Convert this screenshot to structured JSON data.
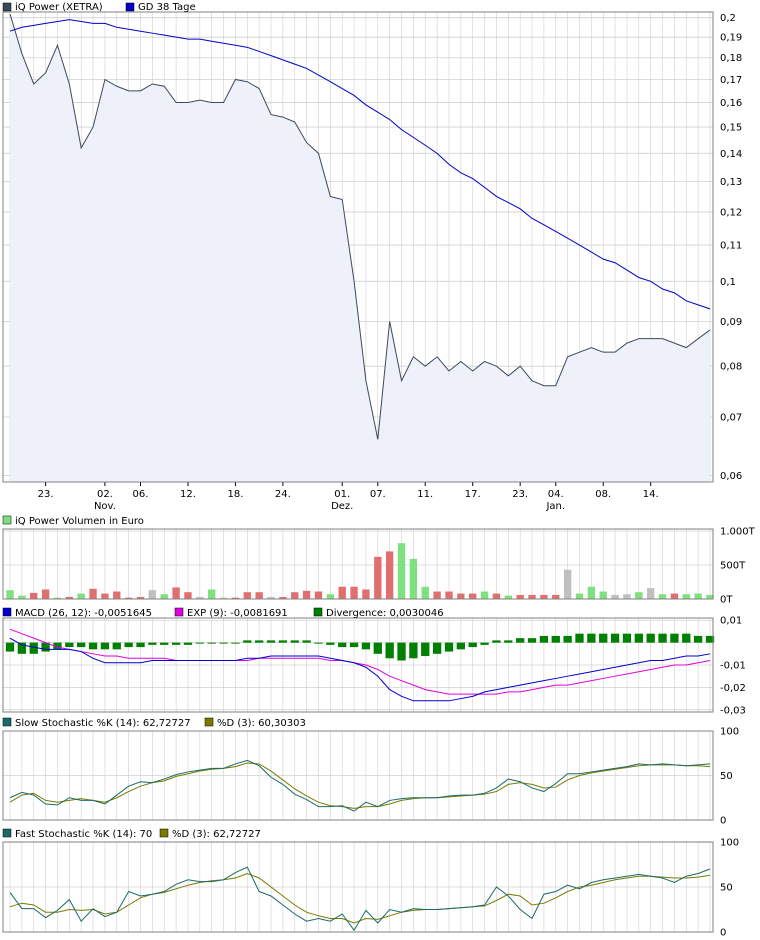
{
  "colors": {
    "price_line": "#3a4a5c",
    "price_fill": "#eef1fa",
    "gd_line": "#0000c8",
    "grid": "#d0d0d0",
    "frame": "#808080",
    "vol_up": "#7fe07f",
    "vol_down": "#e07070",
    "vol_neutral": "#bfbfbf",
    "macd_line": "#0000cc",
    "exp_line": "#e000e0",
    "divergence": "#008000",
    "stoch_k": "#1a6a6a",
    "stoch_d": "#7a7a00"
  },
  "chart_data": [
    {
      "id": "price",
      "type": "area",
      "legend": [
        "iQ Power (XETRA)",
        "GD 38 Tage"
      ],
      "x_tick_labels": [
        {
          "i": 3,
          "top": "23.",
          "bottom": ""
        },
        {
          "i": 8,
          "top": "02.",
          "bottom": "Nov."
        },
        {
          "i": 11,
          "top": "06.",
          "bottom": ""
        },
        {
          "i": 15,
          "top": "12.",
          "bottom": ""
        },
        {
          "i": 19,
          "top": "18.",
          "bottom": ""
        },
        {
          "i": 23,
          "top": "24.",
          "bottom": ""
        },
        {
          "i": 28,
          "top": "01.",
          "bottom": "Dez."
        },
        {
          "i": 31,
          "top": "07.",
          "bottom": ""
        },
        {
          "i": 35,
          "top": "11.",
          "bottom": ""
        },
        {
          "i": 39,
          "top": "17.",
          "bottom": ""
        },
        {
          "i": 43,
          "top": "23.",
          "bottom": ""
        },
        {
          "i": 46,
          "top": "04.",
          "bottom": "Jan."
        },
        {
          "i": 50,
          "top": "08.",
          "bottom": ""
        },
        {
          "i": 54,
          "top": "14.",
          "bottom": ""
        }
      ],
      "y_ticks": [
        0.06,
        0.07,
        0.08,
        0.09,
        0.1,
        0.11,
        0.12,
        0.13,
        0.14,
        0.15,
        0.16,
        0.17,
        0.18,
        0.19,
        0.2
      ],
      "y_tick_labels": [
        "0,06",
        "0,07",
        "0,08",
        "0,09",
        "0,1",
        "0,11",
        "0,12",
        "0,13",
        "0,14",
        "0,15",
        "0,16",
        "0,17",
        "0,18",
        "0,19",
        "0,2"
      ],
      "ylim": [
        0.059,
        0.203
      ],
      "log_scale": true,
      "series": [
        {
          "name": "iQ Power (XETRA)",
          "values": [
            0.202,
            0.182,
            0.168,
            0.173,
            0.186,
            0.168,
            0.142,
            0.15,
            0.17,
            0.167,
            0.165,
            0.165,
            0.168,
            0.167,
            0.16,
            0.16,
            0.161,
            0.16,
            0.16,
            0.17,
            0.169,
            0.166,
            0.155,
            0.154,
            0.152,
            0.144,
            0.14,
            0.125,
            0.124,
            0.1,
            0.077,
            0.066,
            0.09,
            0.077,
            0.082,
            0.08,
            0.082,
            0.079,
            0.081,
            0.079,
            0.081,
            0.08,
            0.078,
            0.08,
            0.077,
            0.076,
            0.076,
            0.082,
            0.083,
            0.084,
            0.083,
            0.083,
            0.085,
            0.086,
            0.086,
            0.086,
            0.085,
            0.084,
            0.086,
            0.088
          ]
        },
        {
          "name": "GD 38 Tage",
          "values": [
            0.193,
            0.195,
            0.196,
            0.197,
            0.198,
            0.199,
            0.198,
            0.197,
            0.197,
            0.195,
            0.194,
            0.193,
            0.192,
            0.191,
            0.19,
            0.189,
            0.189,
            0.188,
            0.187,
            0.186,
            0.185,
            0.183,
            0.181,
            0.179,
            0.177,
            0.175,
            0.172,
            0.169,
            0.166,
            0.163,
            0.159,
            0.156,
            0.153,
            0.149,
            0.146,
            0.143,
            0.14,
            0.136,
            0.133,
            0.131,
            0.128,
            0.125,
            0.123,
            0.121,
            0.118,
            0.116,
            0.114,
            0.112,
            0.11,
            0.108,
            0.106,
            0.105,
            0.103,
            0.101,
            0.1,
            0.098,
            0.097,
            0.095,
            0.094,
            0.093
          ]
        }
      ]
    },
    {
      "id": "volume",
      "type": "bar",
      "legend": [
        "iQ Power Volumen in Euro"
      ],
      "y_tick_labels": [
        {
          "v": 0,
          "label": "0T"
        },
        {
          "v": 500,
          "label": "500T"
        },
        {
          "v": 1000,
          "label": "1.000T"
        }
      ],
      "ylim": [
        0,
        1000
      ],
      "values": [
        130,
        50,
        90,
        140,
        20,
        30,
        80,
        150,
        80,
        110,
        20,
        30,
        130,
        70,
        170,
        100,
        30,
        140,
        20,
        20,
        100,
        100,
        30,
        30,
        100,
        120,
        110,
        70,
        180,
        180,
        140,
        620,
        700,
        820,
        590,
        180,
        110,
        110,
        80,
        80,
        110,
        80,
        50,
        60,
        60,
        60,
        60,
        430,
        80,
        180,
        110,
        60,
        70,
        100,
        160,
        70,
        80,
        70,
        80,
        60
      ],
      "kinds": [
        "up",
        "up",
        "down",
        "down",
        "up",
        "down",
        "up",
        "down",
        "down",
        "down",
        "down",
        "down",
        "neutral",
        "up",
        "down",
        "down",
        "neutral",
        "up",
        "neutral",
        "down",
        "down",
        "down",
        "neutral",
        "down",
        "down",
        "down",
        "down",
        "up",
        "down",
        "down",
        "down",
        "down",
        "down",
        "up",
        "up",
        "up",
        "down",
        "down",
        "down",
        "down",
        "up",
        "down",
        "up",
        "down",
        "down",
        "down",
        "down",
        "neutral",
        "up",
        "up",
        "up",
        "neutral",
        "neutral",
        "up",
        "neutral",
        "up",
        "down",
        "up",
        "up",
        "up"
      ]
    },
    {
      "id": "macd",
      "type": "line",
      "legend": [
        "MACD (26, 12): -0,0051645",
        "EXP (9): -0,0081691",
        "Divergence: 0,0030046"
      ],
      "y_ticks": [
        0.01,
        -0.01,
        -0.02,
        -0.03
      ],
      "y_tick_labels": [
        "0,01",
        "-0,01",
        "-0,02",
        "-0,03"
      ],
      "ylim": [
        -0.031,
        0.011
      ],
      "series": [
        {
          "name": "MACD (26, 12)",
          "values": [
            0.002,
            -0.001,
            -0.002,
            -0.003,
            -0.003,
            -0.003,
            -0.004,
            -0.007,
            -0.009,
            -0.009,
            -0.009,
            -0.009,
            -0.008,
            -0.008,
            -0.008,
            -0.008,
            -0.008,
            -0.008,
            -0.008,
            -0.008,
            -0.007,
            -0.007,
            -0.006,
            -0.006,
            -0.006,
            -0.006,
            -0.006,
            -0.007,
            -0.008,
            -0.009,
            -0.011,
            -0.015,
            -0.021,
            -0.024,
            -0.026,
            -0.026,
            -0.026,
            -0.026,
            -0.025,
            -0.024,
            -0.022,
            -0.021,
            -0.02,
            -0.019,
            -0.018,
            -0.017,
            -0.016,
            -0.015,
            -0.014,
            -0.013,
            -0.012,
            -0.011,
            -0.01,
            -0.009,
            -0.008,
            -0.008,
            -0.007,
            -0.006,
            -0.006,
            -0.005
          ]
        },
        {
          "name": "EXP (9)",
          "values": [
            0.006,
            0.004,
            0.002,
            0.0,
            -0.002,
            -0.003,
            -0.004,
            -0.005,
            -0.006,
            -0.006,
            -0.007,
            -0.007,
            -0.007,
            -0.007,
            -0.008,
            -0.008,
            -0.008,
            -0.008,
            -0.008,
            -0.008,
            -0.008,
            -0.007,
            -0.007,
            -0.007,
            -0.007,
            -0.007,
            -0.007,
            -0.008,
            -0.008,
            -0.009,
            -0.01,
            -0.012,
            -0.015,
            -0.017,
            -0.019,
            -0.021,
            -0.022,
            -0.023,
            -0.023,
            -0.023,
            -0.023,
            -0.023,
            -0.022,
            -0.022,
            -0.021,
            -0.02,
            -0.019,
            -0.019,
            -0.018,
            -0.017,
            -0.016,
            -0.015,
            -0.014,
            -0.013,
            -0.012,
            -0.011,
            -0.01,
            -0.01,
            -0.009,
            -0.008
          ]
        },
        {
          "name": "Divergence",
          "values": [
            -0.004,
            -0.005,
            -0.005,
            -0.004,
            -0.003,
            -0.002,
            -0.002,
            -0.003,
            -0.003,
            -0.003,
            -0.002,
            -0.002,
            -0.001,
            -0.001,
            -0.001,
            -0.001,
            0.0,
            0.0,
            0.0,
            0.0,
            0.001,
            0.001,
            0.001,
            0.001,
            0.001,
            0.001,
            0.0,
            -0.001,
            -0.002,
            -0.002,
            -0.003,
            -0.005,
            -0.007,
            -0.008,
            -0.007,
            -0.006,
            -0.005,
            -0.004,
            -0.003,
            -0.002,
            -0.001,
            0.001,
            0.001,
            0.002,
            0.002,
            0.003,
            0.003,
            0.003,
            0.004,
            0.004,
            0.004,
            0.004,
            0.004,
            0.004,
            0.004,
            0.004,
            0.004,
            0.004,
            0.003,
            0.003
          ]
        }
      ]
    },
    {
      "id": "slow_stochastic",
      "type": "line",
      "legend": [
        "Slow Stochastic %K (14): 62,72727",
        "%D (3): 60,30303"
      ],
      "y_ticks": [
        0,
        50,
        100
      ],
      "y_tick_labels": [
        "0",
        "50",
        "100"
      ],
      "ylim": [
        0,
        100
      ],
      "series": [
        {
          "name": "Slow Stochastic %K (14)",
          "values": [
            25,
            31,
            28,
            18,
            17,
            25,
            22,
            22,
            18,
            28,
            38,
            43,
            42,
            46,
            51,
            54,
            56,
            58,
            58,
            63,
            67,
            61,
            48,
            40,
            29,
            23,
            15,
            15,
            16,
            10,
            20,
            15,
            22,
            24,
            25,
            25,
            25,
            27,
            28,
            28,
            30,
            36,
            46,
            43,
            36,
            32,
            41,
            52,
            52,
            54,
            56,
            58,
            60,
            63,
            62,
            63,
            62,
            61,
            62,
            63
          ]
        },
        {
          "name": "%D (3)",
          "values": [
            20,
            28,
            30,
            22,
            20,
            22,
            24,
            22,
            20,
            25,
            32,
            38,
            42,
            44,
            49,
            52,
            55,
            57,
            58,
            60,
            64,
            63,
            55,
            45,
            35,
            27,
            20,
            16,
            15,
            13,
            15,
            15,
            18,
            22,
            24,
            25,
            25,
            26,
            27,
            28,
            29,
            32,
            40,
            42,
            40,
            36,
            37,
            45,
            50,
            53,
            55,
            57,
            59,
            61,
            62,
            62,
            62,
            61,
            61,
            60
          ]
        }
      ]
    },
    {
      "id": "fast_stochastic",
      "type": "line",
      "legend": [
        "Fast Stochastic %K (14): 70",
        "%D (3): 62,72727"
      ],
      "y_ticks": [
        0,
        50,
        100
      ],
      "y_tick_labels": [
        "0",
        "50",
        "100"
      ],
      "ylim": [
        0,
        100
      ],
      "series": [
        {
          "name": "Fast Stochastic %K (14)",
          "values": [
            44,
            26,
            26,
            16,
            24,
            36,
            12,
            26,
            17,
            22,
            45,
            40,
            42,
            45,
            53,
            58,
            56,
            56,
            58,
            66,
            72,
            45,
            40,
            30,
            20,
            12,
            15,
            12,
            20,
            2,
            24,
            10,
            25,
            22,
            26,
            25,
            25,
            26,
            27,
            28,
            30,
            50,
            40,
            25,
            15,
            42,
            45,
            52,
            48,
            55,
            58,
            60,
            62,
            64,
            62,
            60,
            55,
            62,
            65,
            70
          ]
        },
        {
          "name": "%D (3)",
          "values": [
            28,
            32,
            30,
            22,
            22,
            25,
            24,
            25,
            20,
            22,
            30,
            38,
            42,
            44,
            48,
            52,
            55,
            57,
            58,
            60,
            65,
            60,
            50,
            40,
            30,
            22,
            18,
            15,
            15,
            10,
            15,
            14,
            18,
            22,
            24,
            25,
            25,
            26,
            27,
            28,
            29,
            35,
            42,
            40,
            30,
            32,
            38,
            45,
            50,
            52,
            55,
            58,
            60,
            62,
            62,
            61,
            60,
            60,
            61,
            63
          ]
        }
      ]
    }
  ]
}
